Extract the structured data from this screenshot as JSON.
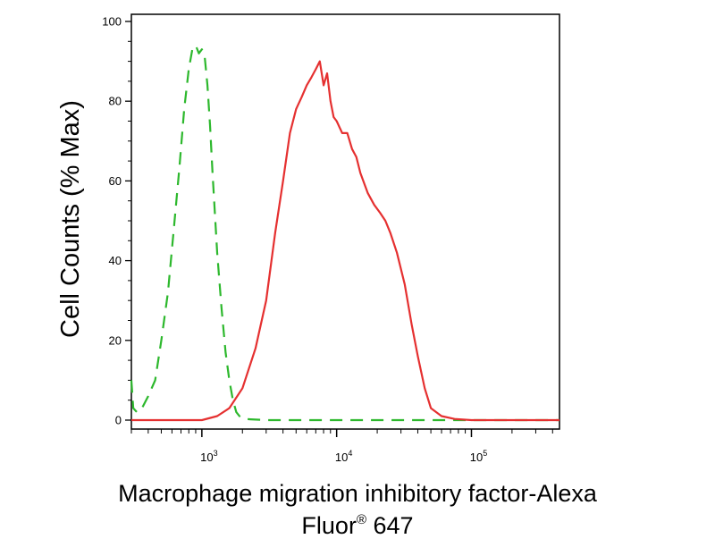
{
  "chart_data": {
    "type": "line",
    "title": "",
    "ylabel": "Cell Counts (% Max)",
    "xlabel": {
      "line1": "Macrophage migration inhibitory factor-Alexa",
      "line2_main": "Fluor",
      "line2_sup": "®",
      "line2_tail": " 647"
    },
    "xscale": "log",
    "xlim": [
      300,
      450000
    ],
    "ylim": [
      0,
      100
    ],
    "y_ticks": [
      0,
      20,
      40,
      60,
      80,
      100
    ],
    "x_ticks": [
      {
        "value": 1000,
        "base": "10",
        "exp": "3"
      },
      {
        "value": 10000,
        "base": "10",
        "exp": "4"
      },
      {
        "value": 100000,
        "base": "10",
        "exp": "5"
      }
    ],
    "grid": false,
    "legend": "none",
    "series": [
      {
        "color": "#2db82d",
        "style": "dashed",
        "x": [
          300,
          310,
          330,
          360,
          400,
          450,
          500,
          560,
          620,
          680,
          740,
          800,
          850,
          900,
          950,
          1000,
          1050,
          1100,
          1150,
          1200,
          1300,
          1400,
          1500,
          1600,
          1700,
          1800,
          1900,
          2000,
          2100,
          2300,
          3000,
          5000,
          10000,
          30000,
          100000,
          450000
        ],
        "y": [
          10,
          3,
          2,
          3,
          6,
          10,
          20,
          32,
          48,
          63,
          78,
          88,
          93,
          94,
          92,
          93,
          91,
          84,
          74,
          62,
          42,
          28,
          17,
          10,
          5,
          2,
          1,
          0.5,
          0.3,
          0.2,
          0,
          0,
          0,
          0,
          0,
          0
        ]
      },
      {
        "color": "#e53030",
        "style": "solid",
        "x": [
          300,
          1000,
          1300,
          1600,
          2000,
          2500,
          3000,
          3500,
          4000,
          4500,
          5000,
          5500,
          6000,
          6500,
          7000,
          7500,
          8000,
          8500,
          9000,
          9500,
          10000,
          11000,
          12000,
          13000,
          14000,
          15000,
          17000,
          19000,
          21000,
          23000,
          25000,
          28000,
          32000,
          36000,
          40000,
          45000,
          50000,
          60000,
          75000,
          100000,
          450000
        ],
        "y": [
          0,
          0,
          1,
          3,
          8,
          18,
          30,
          47,
          60,
          72,
          78,
          81,
          84,
          86,
          88,
          90,
          84,
          87,
          80,
          76,
          75,
          72,
          72,
          68,
          66,
          62,
          57,
          54,
          52,
          50,
          47,
          42,
          34,
          24,
          16,
          8,
          3,
          1,
          0.3,
          0,
          0
        ]
      }
    ]
  }
}
